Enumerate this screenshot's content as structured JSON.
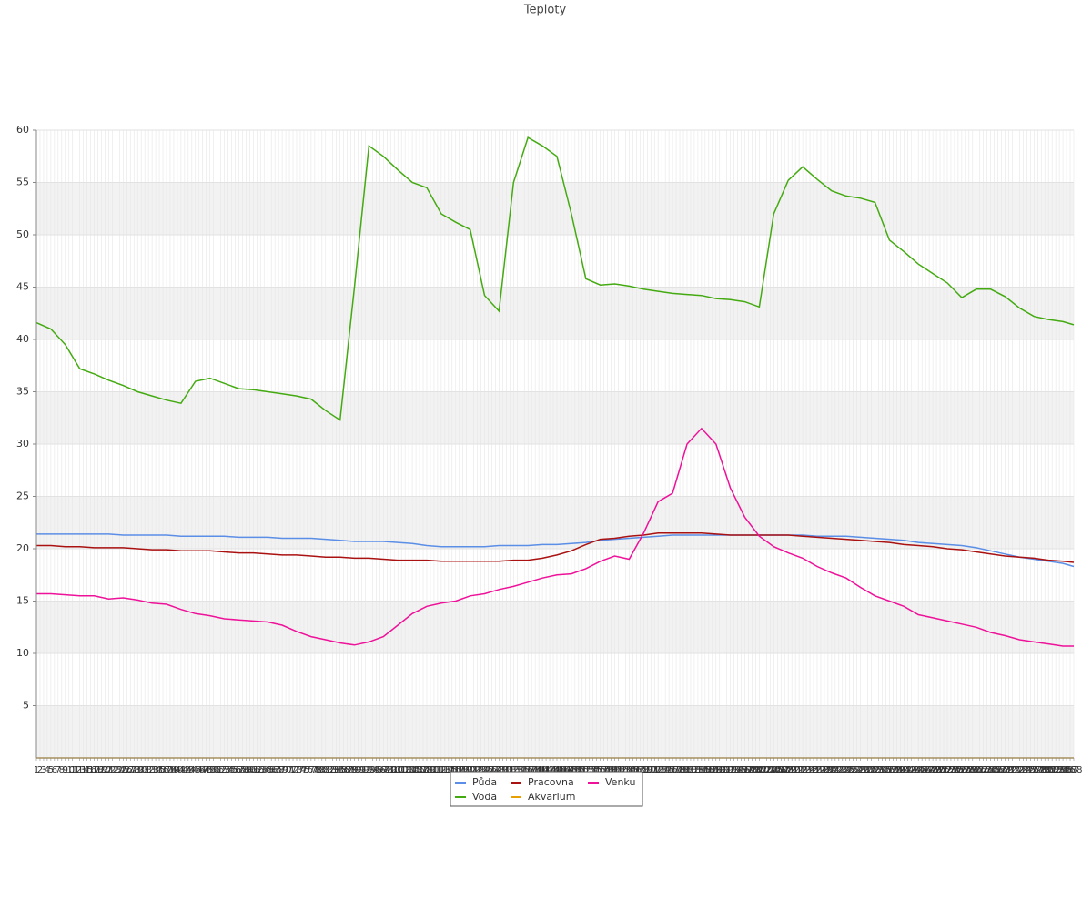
{
  "chart_data": {
    "type": "line",
    "title": "Teploty",
    "x": [
      1,
      5,
      9,
      13,
      17,
      21,
      25,
      29,
      33,
      37,
      41,
      45,
      49,
      53,
      57,
      61,
      65,
      69,
      73,
      77,
      81,
      85,
      89,
      93,
      97,
      101,
      105,
      109,
      113,
      117,
      121,
      125,
      129,
      133,
      137,
      141,
      145,
      149,
      153,
      157,
      161,
      165,
      169,
      173,
      177,
      181,
      185,
      189,
      193,
      197,
      201,
      205,
      209,
      213,
      217,
      221,
      225,
      229,
      233,
      237,
      241,
      245,
      249,
      253,
      257,
      261,
      265,
      269,
      273,
      277,
      281,
      285,
      288
    ],
    "xlim": [
      1,
      288
    ],
    "xticks": [
      1,
      2,
      3,
      4,
      5,
      6,
      7,
      8,
      9,
      10,
      11,
      12,
      13,
      14,
      15,
      16,
      17,
      18,
      19,
      20,
      21,
      22,
      23,
      24,
      25,
      26,
      27,
      28,
      29,
      30,
      31,
      32,
      33,
      34,
      35,
      36,
      37,
      38,
      39,
      40,
      41,
      42,
      43,
      44,
      45,
      46,
      47,
      48,
      49,
      50,
      51,
      52,
      53,
      54,
      55,
      56,
      57,
      58,
      59,
      60,
      61,
      62,
      63,
      64,
      65,
      66,
      67,
      68,
      69,
      70,
      71,
      72,
      73,
      74,
      75,
      76,
      77,
      78,
      79,
      80,
      81,
      82,
      83,
      84,
      85,
      86,
      87,
      88,
      89,
      90,
      91,
      92,
      93,
      94,
      95,
      96,
      97,
      98,
      99,
      100,
      101,
      102,
      103,
      104,
      105,
      106,
      107,
      108,
      109,
      110,
      111,
      112,
      113,
      114,
      115,
      116,
      117,
      118,
      119,
      120,
      121,
      122,
      123,
      124,
      125,
      126,
      127,
      128,
      129,
      130,
      131,
      132,
      133,
      134,
      135,
      136,
      137,
      138,
      139,
      140,
      141,
      142,
      143,
      144,
      145,
      146,
      147,
      148,
      149,
      150,
      151,
      152,
      153,
      154,
      155,
      156,
      157,
      158,
      159,
      160,
      161,
      162,
      163,
      164,
      165,
      166,
      167,
      168,
      169,
      170,
      171,
      172,
      173,
      174,
      175,
      176,
      177,
      178,
      179,
      180,
      181,
      182,
      183,
      184,
      185,
      186,
      187,
      188,
      189,
      190,
      191,
      192,
      193,
      194,
      195,
      196,
      197,
      198,
      199,
      200,
      201,
      202,
      203,
      204,
      205,
      206,
      207,
      208,
      209,
      210,
      211,
      212,
      213,
      214,
      215,
      216,
      217,
      218,
      219,
      220,
      221,
      222,
      223,
      224,
      225,
      226,
      227,
      228,
      229,
      230,
      231,
      232,
      233,
      234,
      235,
      236,
      237,
      238,
      239,
      240,
      241,
      242,
      243,
      244,
      245,
      246,
      247,
      248,
      249,
      250,
      251,
      252,
      253,
      254,
      255,
      256,
      257,
      258,
      259,
      260,
      261,
      262,
      263,
      264,
      265,
      266,
      267,
      268,
      269,
      270,
      271,
      272,
      273,
      274,
      275,
      276,
      277,
      278,
      279,
      280,
      281,
      282,
      283,
      284,
      285,
      286,
      287,
      288
    ],
    "ylim": [
      0,
      60
    ],
    "yticks": [
      5,
      10,
      15,
      20,
      25,
      30,
      35,
      40,
      45,
      50,
      55,
      60
    ],
    "grid": true,
    "series": [
      {
        "name": "Půda",
        "color": "#5b8ee6",
        "values": [
          21.4,
          21.4,
          21.4,
          21.4,
          21.4,
          21.4,
          21.3,
          21.3,
          21.3,
          21.3,
          21.2,
          21.2,
          21.2,
          21.2,
          21.1,
          21.1,
          21.1,
          21.0,
          21.0,
          21.0,
          20.9,
          20.8,
          20.7,
          20.7,
          20.7,
          20.6,
          20.5,
          20.3,
          20.2,
          20.2,
          20.2,
          20.2,
          20.3,
          20.3,
          20.3,
          20.4,
          20.4,
          20.5,
          20.6,
          20.8,
          20.9,
          21.0,
          21.1,
          21.2,
          21.3,
          21.3,
          21.3,
          21.3,
          21.3,
          21.3,
          21.3,
          21.3,
          21.3,
          21.3,
          21.2,
          21.2,
          21.2,
          21.1,
          21.0,
          20.9,
          20.8,
          20.6,
          20.5,
          20.4,
          20.3,
          20.1,
          19.8,
          19.5,
          19.2,
          19.0,
          18.8,
          18.6,
          18.3
        ]
      },
      {
        "name": "Voda",
        "color": "#44aa11",
        "values": [
          41.6,
          41.0,
          39.5,
          37.2,
          36.7,
          36.1,
          35.6,
          35.0,
          34.6,
          34.2,
          33.9,
          36.0,
          36.3,
          35.8,
          35.3,
          35.2,
          35.0,
          34.8,
          34.6,
          34.3,
          33.2,
          32.3,
          45.0,
          58.5,
          57.5,
          56.2,
          55.0,
          54.5,
          52.0,
          51.2,
          50.5,
          44.2,
          42.7,
          55.0,
          59.3,
          58.5,
          57.5,
          52.0,
          45.8,
          45.2,
          45.3,
          45.1,
          44.8,
          44.6,
          44.4,
          44.3,
          44.2,
          43.9,
          43.8,
          43.6,
          43.1,
          52.0,
          55.2,
          56.5,
          55.3,
          54.2,
          53.7,
          53.5,
          53.1,
          49.5,
          48.4,
          47.2,
          46.3,
          45.4,
          44.0,
          44.8,
          44.8,
          44.1,
          43.0,
          42.2,
          41.9,
          41.7,
          41.4
        ]
      },
      {
        "name": "Pracovna",
        "color": "#aa1111",
        "values": [
          20.3,
          20.3,
          20.2,
          20.2,
          20.1,
          20.1,
          20.1,
          20.0,
          19.9,
          19.9,
          19.8,
          19.8,
          19.8,
          19.7,
          19.6,
          19.6,
          19.5,
          19.4,
          19.4,
          19.3,
          19.2,
          19.2,
          19.1,
          19.1,
          19.0,
          18.9,
          18.9,
          18.9,
          18.8,
          18.8,
          18.8,
          18.8,
          18.8,
          18.9,
          18.9,
          19.1,
          19.4,
          19.8,
          20.4,
          20.9,
          21.0,
          21.2,
          21.3,
          21.5,
          21.5,
          21.5,
          21.5,
          21.4,
          21.3,
          21.3,
          21.3,
          21.3,
          21.3,
          21.2,
          21.1,
          21.0,
          20.9,
          20.8,
          20.7,
          20.6,
          20.4,
          20.3,
          20.2,
          20.0,
          19.9,
          19.7,
          19.5,
          19.3,
          19.2,
          19.1,
          18.9,
          18.8,
          18.7
        ]
      },
      {
        "name": "Akvarium",
        "color": "#e8a000",
        "values": [
          0,
          0,
          0,
          0,
          0,
          0,
          0,
          0,
          0,
          0,
          0,
          0,
          0,
          0,
          0,
          0,
          0,
          0,
          0,
          0,
          0,
          0,
          0,
          0,
          0,
          0,
          0,
          0,
          0,
          0,
          0,
          0,
          0,
          0,
          0,
          0,
          0,
          0,
          0,
          0,
          0,
          0,
          0,
          0,
          0,
          0,
          0,
          0,
          0,
          0,
          0,
          0,
          0,
          0,
          0,
          0,
          0,
          0,
          0,
          0,
          0,
          0,
          0,
          0,
          0,
          0,
          0,
          0,
          0,
          0,
          0,
          0,
          0
        ]
      },
      {
        "name": "Venku",
        "color": "#ee1199",
        "values": [
          15.7,
          15.7,
          15.6,
          15.5,
          15.5,
          15.2,
          15.3,
          15.1,
          14.8,
          14.7,
          14.2,
          13.8,
          13.6,
          13.3,
          13.2,
          13.1,
          13.0,
          12.7,
          12.1,
          11.6,
          11.3,
          11.0,
          10.8,
          11.1,
          11.6,
          12.7,
          13.8,
          14.5,
          14.8,
          15.0,
          15.5,
          15.7,
          16.1,
          16.4,
          16.8,
          17.2,
          17.5,
          17.6,
          18.1,
          18.8,
          19.3,
          19.0,
          21.5,
          24.5,
          25.3,
          30.0,
          31.5,
          30.0,
          25.8,
          23.0,
          21.2,
          20.2,
          19.6,
          19.1,
          18.3,
          17.7,
          17.2,
          16.3,
          15.5,
          15.0,
          14.5,
          13.7,
          13.4,
          13.1,
          12.8,
          12.5,
          12.0,
          11.7,
          11.3,
          11.1,
          10.9,
          10.7,
          10.7
        ]
      }
    ]
  }
}
